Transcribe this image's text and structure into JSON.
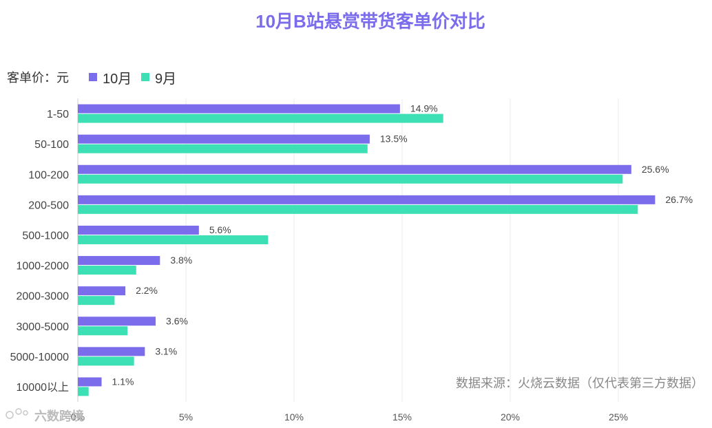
{
  "chart_data": {
    "type": "bar",
    "orientation": "horizontal",
    "title": "10月B站悬赏带货客单价对比",
    "unit_label": "客单价：元",
    "categories": [
      "1-50",
      "50-100",
      "100-200",
      "200-500",
      "500-1000",
      "1000-2000",
      "2000-3000",
      "3000-5000",
      "5000-10000",
      "10000以上"
    ],
    "series": [
      {
        "name": "10月",
        "color": "#7B6CEB",
        "values": [
          14.9,
          13.5,
          25.6,
          26.7,
          5.6,
          3.8,
          2.2,
          3.6,
          3.1,
          1.1
        ],
        "labels": [
          "14.9%",
          "13.5%",
          "25.6%",
          "26.7%",
          "5.6%",
          "3.8%",
          "2.2%",
          "3.6%",
          "3.1%",
          "1.1%"
        ]
      },
      {
        "name": "9月",
        "color": "#3DDFB5",
        "values": [
          16.9,
          13.4,
          25.2,
          25.9,
          8.8,
          2.7,
          1.7,
          2.3,
          2.6,
          0.5
        ]
      }
    ],
    "xlim": [
      0,
      28
    ],
    "xticks": [
      0,
      5,
      10,
      15,
      20,
      25
    ],
    "xtick_labels": [
      "0%",
      "5%",
      "10%",
      "15%",
      "20%",
      "25%"
    ],
    "grid": true,
    "source": "数据来源：火烧云数据（仅代表第三方数据）"
  },
  "watermark": "六数跨境"
}
